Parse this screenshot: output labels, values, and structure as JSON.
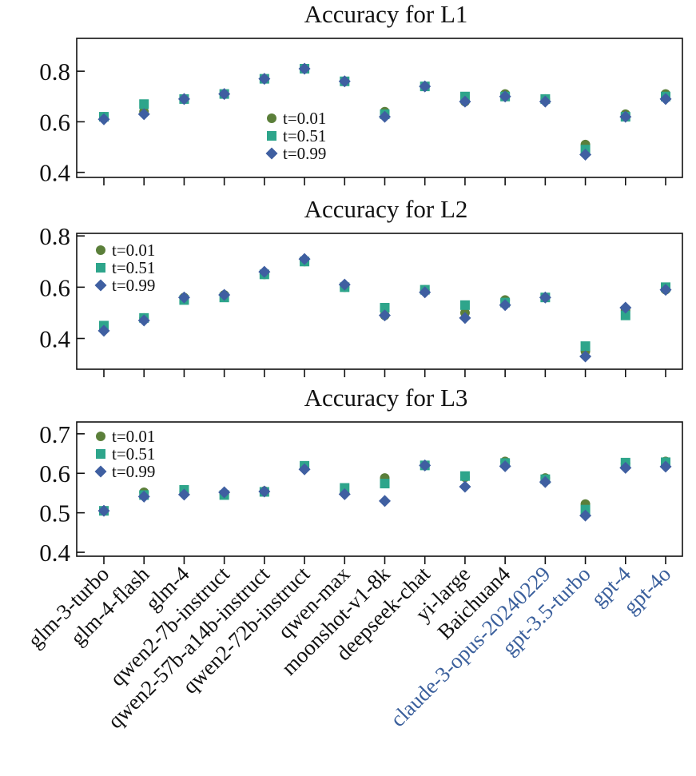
{
  "chart_data": [
    {
      "type": "scatter",
      "title": "Accuracy for L1",
      "xlabel": "",
      "ylabel": "",
      "ylim": [
        0.38,
        0.93
      ],
      "yticks": [
        0.4,
        0.6,
        0.8
      ],
      "ytick_labels": [
        "0.4",
        "0.6",
        "0.8"
      ],
      "legend_position": "center",
      "categories": [
        "glm-3-turbo",
        "glm-4-flash",
        "glm-4",
        "qwen2-7b-instruct",
        "qwen2-57b-a14b-instruct",
        "qwen2-72b-instruct",
        "qwen-max",
        "moonshot-v1-8k",
        "deepseek-chat",
        "yi-large",
        "Baichuan4",
        "claude-3-opus-20240229",
        "gpt-3.5-turbo",
        "gpt-4",
        "gpt-4o"
      ],
      "series": [
        {
          "name": "t=0.01",
          "marker": "circle",
          "color": "#5b7f3a",
          "values": [
            0.62,
            0.64,
            0.69,
            0.71,
            0.77,
            0.81,
            0.76,
            0.64,
            0.74,
            0.68,
            0.71,
            0.69,
            0.51,
            0.63,
            0.71
          ]
        },
        {
          "name": "t=0.51",
          "marker": "square",
          "color": "#2ea58b",
          "values": [
            0.62,
            0.67,
            0.69,
            0.71,
            0.77,
            0.81,
            0.76,
            0.63,
            0.74,
            0.7,
            0.7,
            0.69,
            0.49,
            0.62,
            0.7
          ]
        },
        {
          "name": "t=0.99",
          "marker": "diamond",
          "color": "#3f5fa1",
          "values": [
            0.61,
            0.63,
            0.69,
            0.71,
            0.77,
            0.81,
            0.76,
            0.62,
            0.74,
            0.68,
            0.7,
            0.68,
            0.47,
            0.62,
            0.69
          ]
        }
      ]
    },
    {
      "type": "scatter",
      "title": "Accuracy for L2",
      "xlabel": "",
      "ylabel": "",
      "ylim": [
        0.28,
        0.81
      ],
      "yticks": [
        0.4,
        0.6,
        0.8
      ],
      "ytick_labels": [
        "0.4",
        "0.6",
        "0.8"
      ],
      "legend_position": "top-left",
      "categories": [
        "glm-3-turbo",
        "glm-4-flash",
        "glm-4",
        "qwen2-7b-instruct",
        "qwen2-57b-a14b-instruct",
        "qwen2-72b-instruct",
        "qwen-max",
        "moonshot-v1-8k",
        "deepseek-chat",
        "yi-large",
        "Baichuan4",
        "claude-3-opus-20240229",
        "gpt-3.5-turbo",
        "gpt-4",
        "gpt-4o"
      ],
      "series": [
        {
          "name": "t=0.01",
          "marker": "circle",
          "color": "#5b7f3a",
          "values": [
            0.44,
            0.48,
            0.56,
            0.57,
            0.65,
            0.7,
            0.6,
            0.49,
            0.59,
            0.5,
            0.55,
            0.56,
            0.35,
            0.51,
            0.59
          ]
        },
        {
          "name": "t=0.51",
          "marker": "square",
          "color": "#2ea58b",
          "values": [
            0.45,
            0.48,
            0.55,
            0.56,
            0.65,
            0.7,
            0.6,
            0.52,
            0.59,
            0.53,
            0.54,
            0.56,
            0.37,
            0.49,
            0.6
          ]
        },
        {
          "name": "t=0.99",
          "marker": "diamond",
          "color": "#3f5fa1",
          "values": [
            0.43,
            0.47,
            0.56,
            0.57,
            0.66,
            0.71,
            0.61,
            0.49,
            0.58,
            0.48,
            0.53,
            0.56,
            0.33,
            0.52,
            0.59
          ]
        }
      ]
    },
    {
      "type": "scatter",
      "title": "Accuracy for L3",
      "xlabel": "",
      "ylabel": "",
      "ylim": [
        0.39,
        0.73
      ],
      "yticks": [
        0.4,
        0.5,
        0.6,
        0.7
      ],
      "ytick_labels": [
        "0.4",
        "0.5",
        "0.6",
        "0.7"
      ],
      "legend_position": "top-left",
      "categories": [
        "glm-3-turbo",
        "glm-4-flash",
        "glm-4",
        "qwen2-7b-instruct",
        "qwen2-57b-a14b-instruct",
        "qwen2-72b-instruct",
        "qwen-max",
        "moonshot-v1-8k",
        "deepseek-chat",
        "yi-large",
        "Baichuan4",
        "claude-3-opus-20240229",
        "gpt-3.5-turbo",
        "gpt-4",
        "gpt-4o"
      ],
      "series": [
        {
          "name": "t=0.01",
          "marker": "circle",
          "color": "#5b7f3a",
          "values": [
            0.505,
            0.552,
            0.553,
            0.547,
            0.555,
            0.617,
            0.55,
            0.588,
            0.62,
            0.59,
            0.63,
            0.588,
            0.522,
            0.625,
            0.63
          ]
        },
        {
          "name": "t=0.51",
          "marker": "square",
          "color": "#2ea58b",
          "values": [
            0.505,
            0.545,
            0.558,
            0.545,
            0.553,
            0.619,
            0.563,
            0.574,
            0.62,
            0.593,
            0.626,
            0.585,
            0.508,
            0.627,
            0.628
          ]
        },
        {
          "name": "t=0.99",
          "marker": "diamond",
          "color": "#3f5fa1",
          "values": [
            0.505,
            0.541,
            0.546,
            0.552,
            0.554,
            0.61,
            0.547,
            0.53,
            0.62,
            0.566,
            0.618,
            0.578,
            0.493,
            0.614,
            0.617
          ]
        }
      ]
    }
  ],
  "x_axis": {
    "categories": [
      "glm-3-turbo",
      "glm-4-flash",
      "glm-4",
      "qwen2-7b-instruct",
      "qwen2-57b-a14b-instruct",
      "qwen2-72b-instruct",
      "qwen-max",
      "moonshot-v1-8k",
      "deepseek-chat",
      "yi-large",
      "Baichuan4",
      "claude-3-opus-20240229",
      "gpt-3.5-turbo",
      "gpt-4",
      "gpt-4o"
    ],
    "label_colors": [
      "#111111",
      "#111111",
      "#111111",
      "#111111",
      "#111111",
      "#111111",
      "#111111",
      "#111111",
      "#111111",
      "#111111",
      "#111111",
      "#3a5f9c",
      "#3a5f9c",
      "#3a5f9c",
      "#3a5f9c"
    ]
  }
}
